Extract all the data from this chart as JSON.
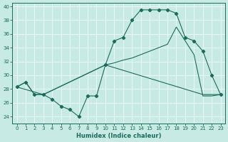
{
  "xlabel": "Humidex (Indice chaleur)",
  "xlim": [
    -0.5,
    23.5
  ],
  "ylim": [
    23.0,
    40.5
  ],
  "yticks": [
    24,
    26,
    28,
    30,
    32,
    34,
    36,
    38,
    40
  ],
  "xticks": [
    0,
    1,
    2,
    3,
    4,
    5,
    6,
    7,
    8,
    9,
    10,
    11,
    12,
    13,
    14,
    15,
    16,
    17,
    18,
    19,
    20,
    21,
    22,
    23
  ],
  "bg_color": "#c8eae4",
  "grid_color": "#e8f8f5",
  "line_color": "#1a6b5a",
  "line1_x": [
    0,
    1,
    2,
    3,
    4,
    5,
    6,
    7,
    8,
    9,
    10,
    11,
    12,
    13,
    14,
    15,
    16,
    17,
    18,
    19,
    20,
    21,
    22,
    23
  ],
  "line1_y": [
    28.3,
    29.0,
    27.2,
    27.2,
    26.5,
    25.5,
    25.0,
    24.0,
    27.0,
    27.0,
    31.5,
    35.0,
    35.5,
    38.0,
    39.5,
    39.5,
    39.5,
    39.5,
    39.0,
    35.5,
    35.0,
    33.5,
    30.0,
    27.2
  ],
  "line2_x": [
    0,
    1,
    2,
    3,
    10,
    11,
    12,
    13,
    14,
    15,
    16,
    17,
    18,
    19,
    20,
    21,
    22,
    23
  ],
  "line2_y": [
    28.3,
    29.0,
    27.2,
    27.2,
    31.5,
    31.8,
    32.2,
    32.5,
    33.0,
    33.5,
    34.0,
    34.5,
    37.0,
    35.0,
    33.0,
    27.0,
    27.0,
    27.2
  ],
  "line3_x": [
    0,
    3,
    10,
    21,
    22,
    23
  ],
  "line3_y": [
    28.3,
    27.2,
    31.5,
    27.2,
    27.2,
    27.2
  ]
}
